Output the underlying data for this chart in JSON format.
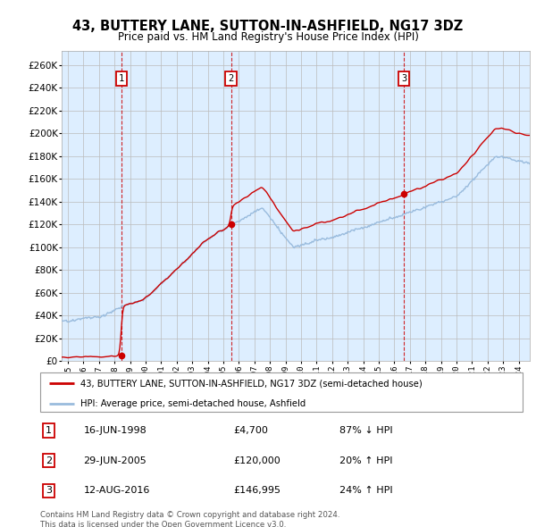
{
  "title": "43, BUTTERY LANE, SUTTON-IN-ASHFIELD, NG17 3DZ",
  "subtitle": "Price paid vs. HM Land Registry's House Price Index (HPI)",
  "ylabel_ticks": [
    0,
    20000,
    40000,
    60000,
    80000,
    100000,
    120000,
    140000,
    160000,
    180000,
    200000,
    220000,
    240000,
    260000
  ],
  "ylim": [
    0,
    272000
  ],
  "xlim_start": 1994.6,
  "xlim_end": 2024.7,
  "sale_dates": [
    1998.46,
    2005.49,
    2016.62
  ],
  "sale_prices": [
    4700,
    120000,
    146995
  ],
  "sale_labels": [
    "1",
    "2",
    "3"
  ],
  "legend_property": "43, BUTTERY LANE, SUTTON-IN-ASHFIELD, NG17 3DZ (semi-detached house)",
  "legend_hpi": "HPI: Average price, semi-detached house, Ashfield",
  "table_rows": [
    [
      "1",
      "16-JUN-1998",
      "£4,700",
      "87% ↓ HPI"
    ],
    [
      "2",
      "29-JUN-2005",
      "£120,000",
      "20% ↑ HPI"
    ],
    [
      "3",
      "12-AUG-2016",
      "£146,995",
      "24% ↑ HPI"
    ]
  ],
  "footer": "Contains HM Land Registry data © Crown copyright and database right 2024.\nThis data is licensed under the Open Government Licence v3.0.",
  "property_line_color": "#cc0000",
  "hpi_line_color": "#99bbdd",
  "dashed_line_color": "#cc0000",
  "box_color": "#cc0000",
  "bg_color": "#ddeeff",
  "grid_color": "#bbbbbb"
}
